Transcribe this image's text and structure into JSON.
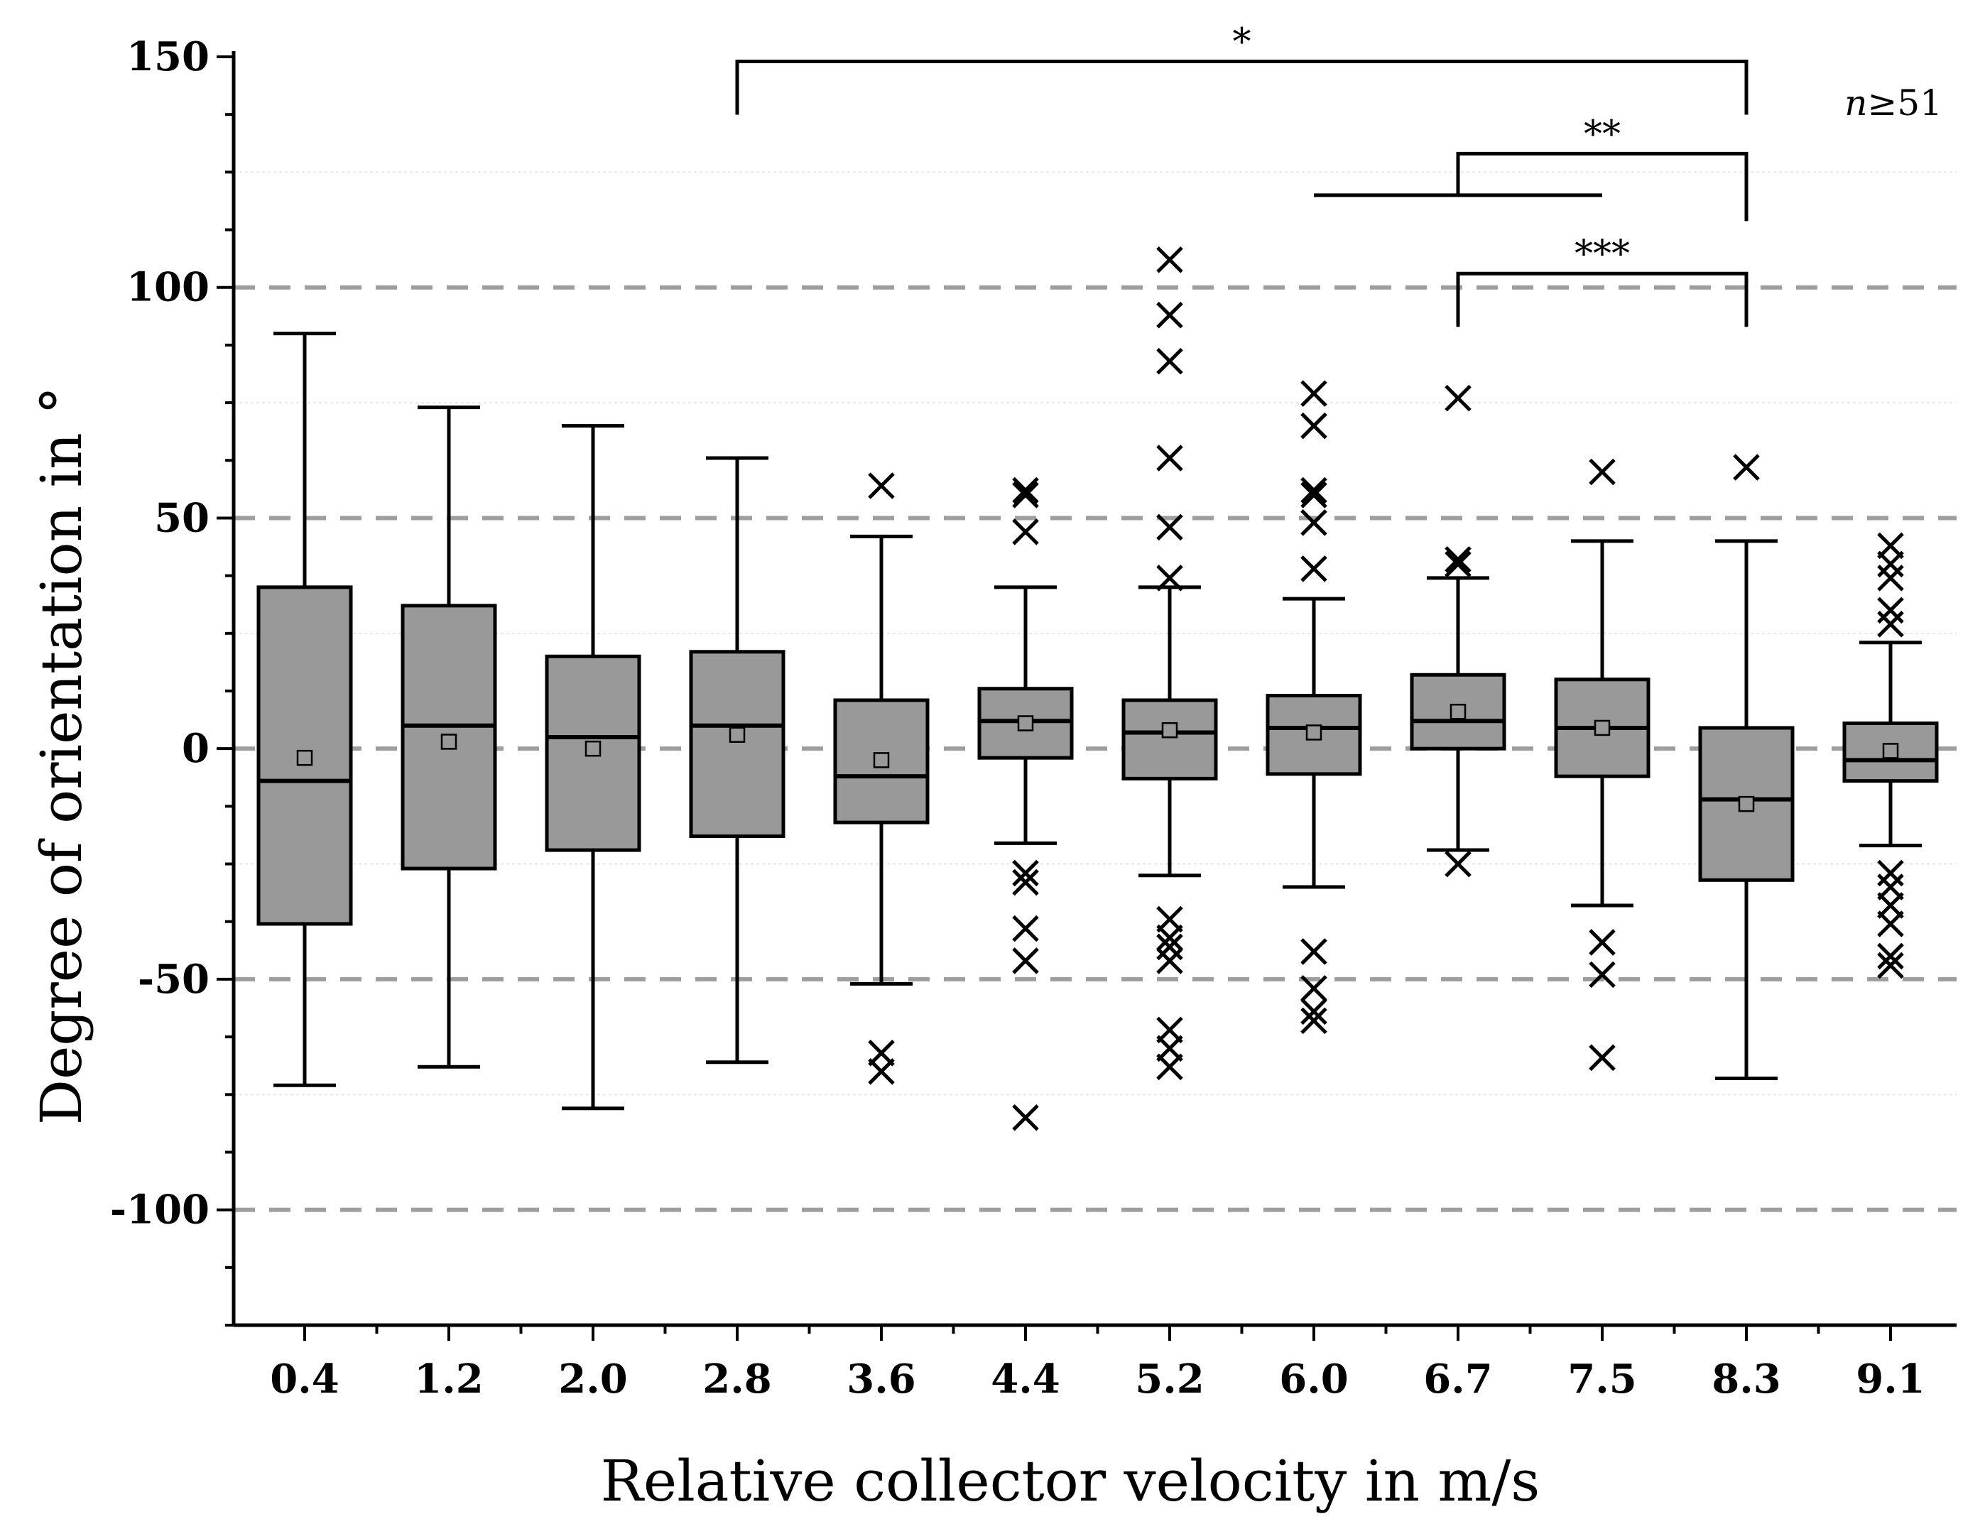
{
  "chart_data": {
    "type": "box",
    "xlabel": "Relative collector velocity in m/s",
    "ylabel": "Degree of orientation in °",
    "ylim": [
      -125,
      150
    ],
    "yticks": [
      -100,
      -50,
      0,
      50,
      100,
      150
    ],
    "ytick_labels": [
      "-100",
      "-50",
      "0",
      "50",
      "100",
      "150"
    ],
    "reference_lines": [
      -100,
      -50,
      0,
      50,
      100
    ],
    "sample_note": {
      "italic": "n",
      "text": "≥51"
    },
    "categories": [
      "0.4",
      "1.2",
      "2.0",
      "2.8",
      "3.6",
      "4.4",
      "5.2",
      "6.0",
      "6.7",
      "7.5",
      "8.3",
      "9.1"
    ],
    "boxes": [
      {
        "q1": -38,
        "median": -7,
        "q3": 35,
        "mean": -2,
        "whisker_low": -73,
        "whisker_high": 90,
        "outliers": []
      },
      {
        "q1": -26,
        "median": 5,
        "q3": 31,
        "mean": 1.5,
        "whisker_low": -69,
        "whisker_high": 74,
        "outliers": []
      },
      {
        "q1": -22,
        "median": 2.5,
        "q3": 20,
        "mean": 0,
        "whisker_low": -78,
        "whisker_high": 70,
        "outliers": []
      },
      {
        "q1": -19,
        "median": 5,
        "q3": 21,
        "mean": 3,
        "whisker_low": -68,
        "whisker_high": 63,
        "outliers": []
      },
      {
        "q1": -16,
        "median": -6,
        "q3": 10.5,
        "mean": -2.5,
        "whisker_low": -51,
        "whisker_high": 46,
        "outliers": [
          57,
          -66,
          -70
        ]
      },
      {
        "q1": -2,
        "median": 6,
        "q3": 13,
        "mean": 5.5,
        "whisker_low": -20.5,
        "whisker_high": 35,
        "outliers": [
          56,
          55,
          47,
          -27,
          -29,
          -39,
          -46,
          -80
        ]
      },
      {
        "q1": -6.5,
        "median": 3.5,
        "q3": 10.5,
        "mean": 4,
        "whisker_low": -27.5,
        "whisker_high": 35,
        "outliers": [
          106,
          94,
          84,
          63,
          48,
          37,
          -37,
          -41,
          -43,
          -46,
          -61,
          -65,
          -69
        ]
      },
      {
        "q1": -5.5,
        "median": 4.5,
        "q3": 11.5,
        "mean": 3.5,
        "whisker_low": -30,
        "whisker_high": 32.5,
        "outliers": [
          77,
          70,
          56,
          55,
          49,
          39,
          -44,
          -52,
          -57,
          -59
        ]
      },
      {
        "q1": 0,
        "median": 6,
        "q3": 16,
        "mean": 8,
        "whisker_low": -22,
        "whisker_high": 37,
        "outliers": [
          76,
          41,
          40,
          -25
        ]
      },
      {
        "q1": -6,
        "median": 4.5,
        "q3": 15,
        "mean": 4.5,
        "whisker_low": -34,
        "whisker_high": 45,
        "outliers": [
          60,
          -42,
          -49,
          -67
        ]
      },
      {
        "q1": -28.5,
        "median": -11,
        "q3": 4.5,
        "mean": -12,
        "whisker_low": -71.5,
        "whisker_high": 45,
        "outliers": [
          61
        ]
      },
      {
        "q1": -7,
        "median": -2.5,
        "q3": 5.5,
        "mean": -0.5,
        "whisker_low": -21,
        "whisker_high": 23,
        "outliers": [
          44,
          40,
          37,
          30,
          27,
          -27,
          -30,
          -34,
          -38,
          -45,
          -47
        ]
      }
    ],
    "significance": [
      {
        "label": "*",
        "from": "2.8",
        "to": "8.3",
        "level": 149
      },
      {
        "label": "**",
        "from": "6.7",
        "to": "8.3",
        "level": 129,
        "group_from": "6.0",
        "group_to": "7.5",
        "group_level": 120
      },
      {
        "label": "***",
        "from": "6.7",
        "to": "8.3",
        "level": 103
      }
    ],
    "colors": {
      "box_fill": "#999999",
      "ref_line": "#9e9e9e",
      "minor_grid": "#e6e6e6",
      "ink": "#000000"
    }
  }
}
